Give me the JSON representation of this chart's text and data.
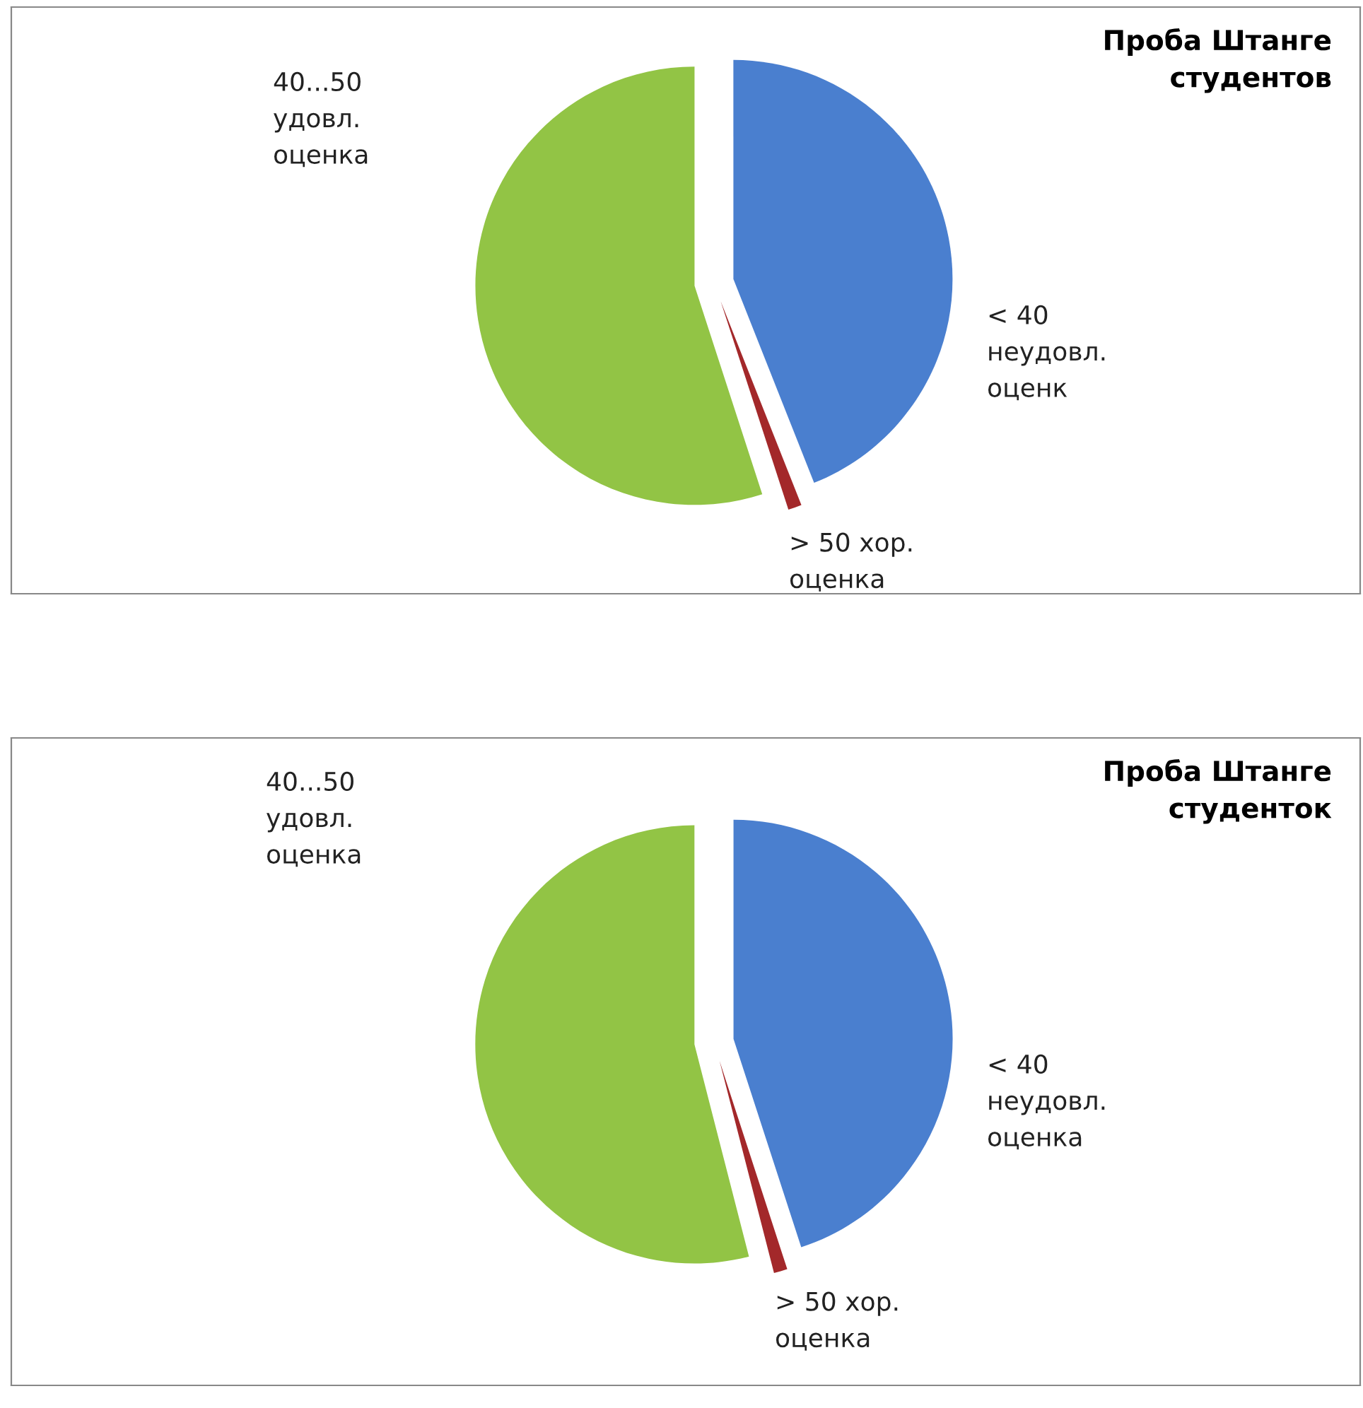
{
  "chart_data": [
    {
      "type": "pie",
      "title": "Проба Штанге\nстудентов",
      "categories": [
        "< 40\nнеудовл.\nоценк",
        "> 50 хор.\nоценка",
        "40...50\nудовл.\nоценка"
      ],
      "values": [
        44,
        1,
        55
      ],
      "colors": [
        "#4a7fcf",
        "#a3282a",
        "#92c445"
      ]
    },
    {
      "type": "pie",
      "title": "Проба Штанге\nстуденток",
      "categories": [
        "< 40\nнеудовл.\nоценка",
        "> 50 хор.\nоценка",
        "40...50\nудовл.\nоценка"
      ],
      "values": [
        45,
        1,
        54
      ],
      "colors": [
        "#4a7fcf",
        "#a3282a",
        "#92c445"
      ]
    }
  ]
}
